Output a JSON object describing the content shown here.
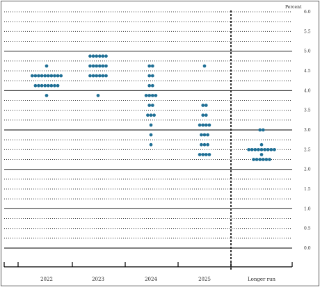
{
  "chart_data": {
    "type": "scatter",
    "title": "",
    "xlabel": "",
    "ylabel": "Percent",
    "ylim": [
      0,
      6
    ],
    "y_ticks": [
      "0.0",
      "0.5",
      "1.0",
      "1.5",
      "2.0",
      "2.5",
      "3.0",
      "3.5",
      "4.0",
      "4.5",
      "5.0",
      "5.5",
      "6.0"
    ],
    "categories": [
      "2022",
      "2023",
      "2024",
      "2025",
      "Longer run"
    ],
    "series": [
      {
        "category": "2022",
        "points": [
          {
            "y": 4.625,
            "count": 1
          },
          {
            "y": 4.375,
            "count": 10
          },
          {
            "y": 4.125,
            "count": 8
          },
          {
            "y": 3.875,
            "count": 1
          }
        ]
      },
      {
        "category": "2023",
        "points": [
          {
            "y": 4.875,
            "count": 6
          },
          {
            "y": 4.625,
            "count": 6
          },
          {
            "y": 4.375,
            "count": 6
          },
          {
            "y": 3.875,
            "count": 1
          }
        ]
      },
      {
        "category": "2024",
        "points": [
          {
            "y": 4.625,
            "count": 2
          },
          {
            "y": 4.375,
            "count": 2
          },
          {
            "y": 4.125,
            "count": 2
          },
          {
            "y": 3.875,
            "count": 4
          },
          {
            "y": 3.625,
            "count": 2
          },
          {
            "y": 3.375,
            "count": 3
          },
          {
            "y": 3.125,
            "count": 1
          },
          {
            "y": 2.875,
            "count": 1
          },
          {
            "y": 2.625,
            "count": 1
          }
        ]
      },
      {
        "category": "2025",
        "points": [
          {
            "y": 4.625,
            "count": 1
          },
          {
            "y": 3.625,
            "count": 2
          },
          {
            "y": 3.375,
            "count": 2
          },
          {
            "y": 3.125,
            "count": 4
          },
          {
            "y": 2.875,
            "count": 3
          },
          {
            "y": 2.625,
            "count": 3
          },
          {
            "y": 2.375,
            "count": 4
          }
        ]
      },
      {
        "category": "Longer run",
        "points": [
          {
            "y": 3.0,
            "count": 2
          },
          {
            "y": 2.625,
            "count": 1
          },
          {
            "y": 2.5,
            "count": 9
          },
          {
            "y": 2.375,
            "count": 1
          },
          {
            "y": 2.25,
            "count": 6
          }
        ]
      }
    ],
    "grid": true,
    "solid_gridlines_at": [
      0,
      1,
      2,
      3,
      4,
      5
    ],
    "dotted_gridlines_every": 0.25,
    "colors": {
      "dot": "#1f6f95"
    }
  }
}
